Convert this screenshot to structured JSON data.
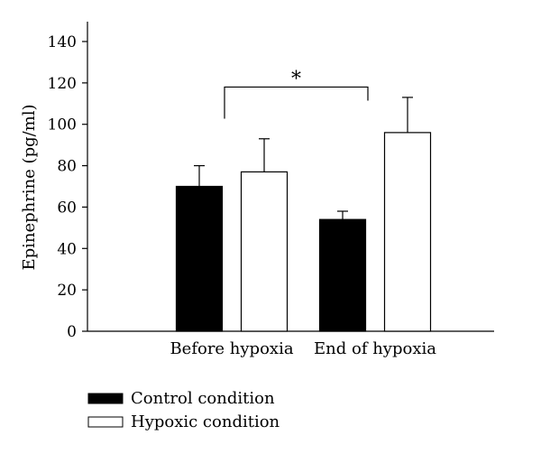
{
  "chart_data": {
    "type": "bar",
    "title": "",
    "xlabel": "",
    "ylabel": "Epinephrine (pg/ml)",
    "ylim": [
      0,
      140
    ],
    "yticks": [
      0,
      20,
      40,
      60,
      80,
      100,
      120,
      140
    ],
    "categories": [
      "Before hypoxia",
      "End of hypoxia"
    ],
    "series": [
      {
        "name": "Control condition",
        "fill": "#000000",
        "values": [
          70,
          54
        ],
        "errors": [
          10,
          4
        ]
      },
      {
        "name": "Hypoxic condition",
        "fill": "#ffffff",
        "values": [
          77,
          96
        ],
        "errors": [
          16,
          17
        ]
      }
    ],
    "significance": {
      "label": "*",
      "y": 118,
      "from_category": 0,
      "to_category": 1
    },
    "legend_position": "bottom-left",
    "grid": false
  }
}
